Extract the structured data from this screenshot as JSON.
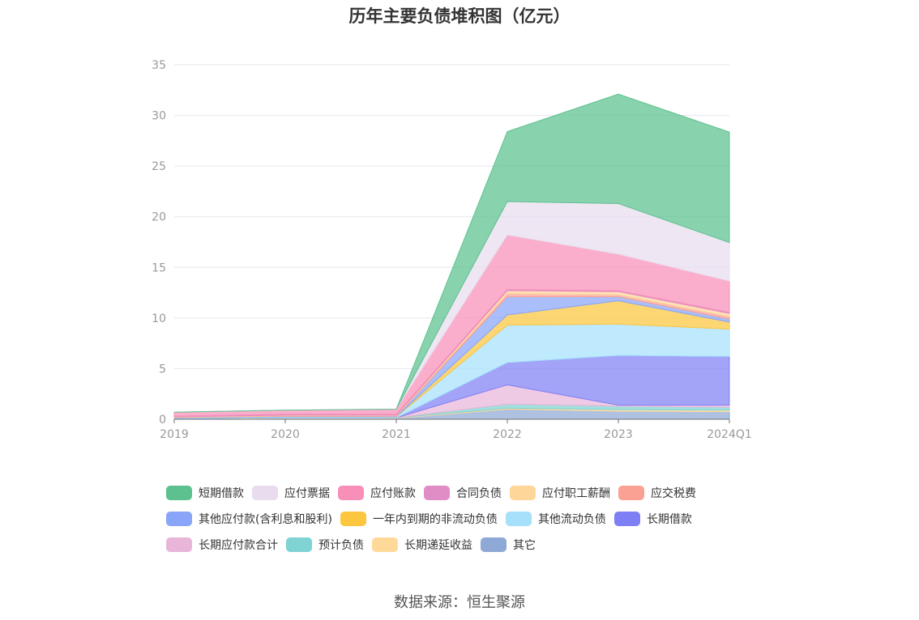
{
  "source_text": "数据来源：恒生聚源",
  "chart_data": {
    "type": "area",
    "stacked": true,
    "title": "历年主要负债堆积图（亿元）",
    "xlabel": "",
    "ylabel": "",
    "x": [
      "2019",
      "2020",
      "2021",
      "2022",
      "2023",
      "2024Q1"
    ],
    "ylim": [
      0,
      35
    ],
    "yticks": [
      0,
      5,
      10,
      15,
      20,
      25,
      30,
      35
    ],
    "grid": true,
    "legend_position": "bottom",
    "series": [
      {
        "name": "其它",
        "color": "#8fa9d6",
        "values": [
          0.05,
          0.1,
          0.1,
          1.0,
          0.8,
          0.75
        ]
      },
      {
        "name": "长期递延收益",
        "color": "#ffd99a",
        "values": [
          0.02,
          0.05,
          0.05,
          0.1,
          0.15,
          0.15
        ]
      },
      {
        "name": "预计负债",
        "color": "#7fd3d3",
        "values": [
          0.0,
          0.0,
          0.0,
          0.4,
          0.35,
          0.3
        ]
      },
      {
        "name": "长期应付款合计",
        "color": "#e9b5d9",
        "values": [
          0.0,
          0.0,
          0.0,
          1.9,
          0.1,
          0.2
        ]
      },
      {
        "name": "长期借款",
        "color": "#7f7ff5",
        "values": [
          0.0,
          0.0,
          0.0,
          2.2,
          4.9,
          4.8
        ]
      },
      {
        "name": "其他流动负债",
        "color": "#a6e0fb",
        "values": [
          0.05,
          0.1,
          0.1,
          3.7,
          3.1,
          2.7
        ]
      },
      {
        "name": "一年内到期的非流动负债",
        "color": "#fcc63f",
        "values": [
          0.0,
          0.0,
          0.0,
          1.0,
          2.3,
          0.7
        ]
      },
      {
        "name": "其他应付款(含利息和股利)",
        "color": "#88a5f8",
        "values": [
          0.05,
          0.05,
          0.05,
          1.8,
          0.4,
          0.3
        ]
      },
      {
        "name": "应交税费",
        "color": "#fba194",
        "values": [
          0.03,
          0.05,
          0.05,
          0.3,
          0.2,
          0.25
        ]
      },
      {
        "name": "应付职工薪酬",
        "color": "#ffd69a",
        "values": [
          0.05,
          0.05,
          0.05,
          0.3,
          0.3,
          0.3
        ]
      },
      {
        "name": "合同负债",
        "color": "#e08dc6",
        "values": [
          0.05,
          0.1,
          0.1,
          0.1,
          0.1,
          0.1
        ]
      },
      {
        "name": "应付账款",
        "color": "#f88fb9",
        "values": [
          0.4,
          0.4,
          0.5,
          5.4,
          3.6,
          3.1
        ]
      },
      {
        "name": "应付票据",
        "color": "#e8dcee",
        "values": [
          0.0,
          0.0,
          0.0,
          3.3,
          5.0,
          3.8
        ]
      },
      {
        "name": "短期借款",
        "color": "#5cc18f",
        "values": [
          0.0,
          0.0,
          0.0,
          6.9,
          10.8,
          10.9
        ]
      }
    ],
    "legend_order": [
      "短期借款",
      "应付票据",
      "应付账款",
      "合同负债",
      "应付职工薪酬",
      "应交税费",
      "其他应付款(含利息和股利)",
      "一年内到期的非流动负债",
      "其他流动负债",
      "长期借款",
      "长期应付款合计",
      "预计负债",
      "长期递延收益",
      "其它"
    ]
  }
}
